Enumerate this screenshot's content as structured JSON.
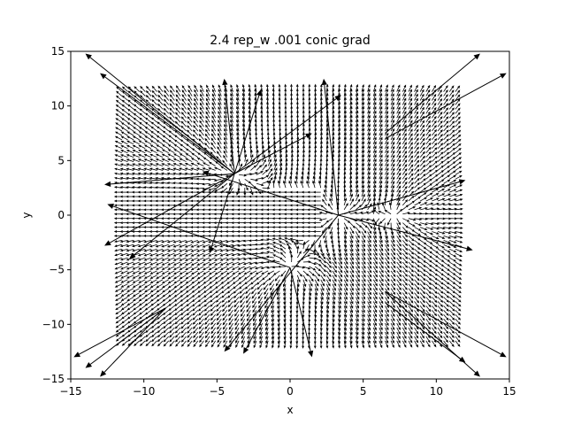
{
  "chart_data": {
    "type": "quiver",
    "title": "2.4 rep_w .001 conic grad",
    "xlabel": "x",
    "ylabel": "y",
    "xlim": [
      -15,
      15
    ],
    "ylim": [
      -15,
      15
    ],
    "xticks": [
      -15,
      -10,
      -5,
      0,
      5,
      10,
      15
    ],
    "yticks": [
      -15,
      -10,
      -5,
      0,
      5,
      10,
      15
    ],
    "xtick_labels": [
      "−15",
      "−10",
      "−5",
      "0",
      "5",
      "10",
      "15"
    ],
    "ytick_labels": [
      "−15",
      "−10",
      "−5",
      "0",
      "5",
      "10",
      "15"
    ],
    "grid": false,
    "arrow_color": "#000000",
    "field": {
      "x_range": [
        -11.5,
        11.5
      ],
      "y_range": [
        -11.5,
        11.5
      ],
      "step": 0.4,
      "sources": [
        {
          "x": -3.8,
          "y": 3.8
        },
        {
          "x": 3.3,
          "y": 0.0
        },
        {
          "x": 7.3,
          "y": 0.0
        },
        {
          "x": 0.0,
          "y": -4.8
        }
      ]
    },
    "long_arrows": [
      {
        "x0": -3.8,
        "y0": 3.8,
        "x1": -13.0,
        "y1": 13.0
      },
      {
        "x0": -3.8,
        "y0": 3.8,
        "x1": -14.0,
        "y1": 14.8
      },
      {
        "x0": -3.8,
        "y0": 3.8,
        "x1": -4.5,
        "y1": 12.5
      },
      {
        "x0": -3.8,
        "y0": 3.8,
        "x1": -2.0,
        "y1": 11.5
      },
      {
        "x0": -3.8,
        "y0": 3.8,
        "x1": -12.7,
        "y1": 2.8
      },
      {
        "x0": -3.8,
        "y0": 3.8,
        "x1": -12.7,
        "y1": -2.8
      },
      {
        "x0": -3.8,
        "y0": 3.8,
        "x1": -11.0,
        "y1": -4.0
      },
      {
        "x0": -3.8,
        "y0": 3.8,
        "x1": -5.5,
        "y1": -3.5
      },
      {
        "x0": -3.8,
        "y0": 3.8,
        "x1": 3.5,
        "y1": 11.0
      },
      {
        "x0": -3.8,
        "y0": 3.8,
        "x1": 1.5,
        "y1": 7.5
      },
      {
        "x0": 3.3,
        "y0": 0.0,
        "x1": 2.3,
        "y1": 12.5
      },
      {
        "x0": 3.3,
        "y0": 0.0,
        "x1": 12.0,
        "y1": 3.2
      },
      {
        "x0": 3.3,
        "y0": 0.0,
        "x1": 12.5,
        "y1": -3.2
      },
      {
        "x0": 3.3,
        "y0": 0.0,
        "x1": -4.5,
        "y1": -12.5
      },
      {
        "x0": 3.3,
        "y0": 0.0,
        "x1": -6.0,
        "y1": 4.0
      },
      {
        "x0": 0.0,
        "y0": -4.8,
        "x1": -3.2,
        "y1": -12.7
      },
      {
        "x0": 0.0,
        "y0": -4.8,
        "x1": 1.5,
        "y1": -13.0
      },
      {
        "x0": 0.0,
        "y0": -4.8,
        "x1": -12.5,
        "y1": 1.0
      },
      {
        "x0": 6.5,
        "y0": 7.5,
        "x1": 13.0,
        "y1": 14.8
      },
      {
        "x0": 6.5,
        "y0": 7.0,
        "x1": 14.8,
        "y1": 13.0
      },
      {
        "x0": 6.5,
        "y0": -7.0,
        "x1": 13.0,
        "y1": -14.8
      },
      {
        "x0": 6.5,
        "y0": -7.0,
        "x1": 14.8,
        "y1": -13.0
      },
      {
        "x0": 6.5,
        "y0": -8.0,
        "x1": 12.0,
        "y1": -13.5
      },
      {
        "x0": -8.5,
        "y0": -8.5,
        "x1": -14.8,
        "y1": -13.0
      },
      {
        "x0": -8.5,
        "y0": -8.5,
        "x1": -14.0,
        "y1": -14.0
      },
      {
        "x0": -8.5,
        "y0": -8.5,
        "x1": -13.0,
        "y1": -14.8
      }
    ]
  }
}
